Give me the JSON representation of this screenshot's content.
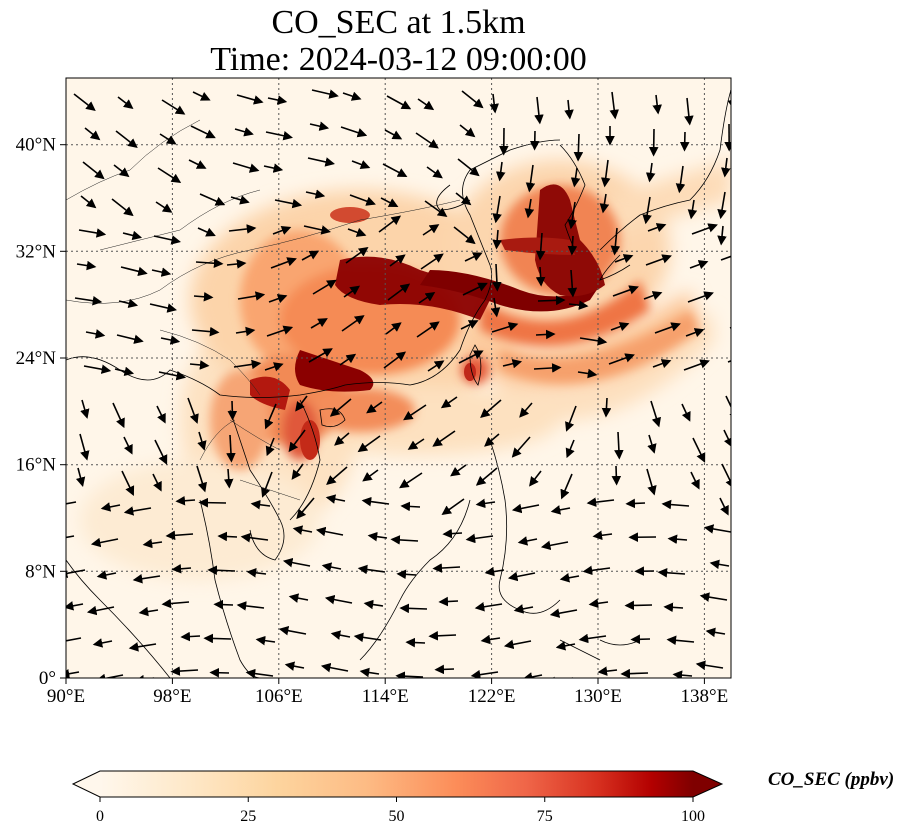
{
  "title": {
    "line1": "CO_SEC at 1.5km",
    "line2": "Time: 2024-03-12 09:00:00"
  },
  "map": {
    "lon_range": [
      90,
      140
    ],
    "lat_range": [
      0,
      45
    ],
    "x_ticks": [
      "90°E",
      "98°E",
      "106°E",
      "114°E",
      "122°E",
      "130°E",
      "138°E"
    ],
    "y_ticks": [
      "0°",
      "8°N",
      "16°N",
      "24°N",
      "32°N",
      "40°N"
    ],
    "gridlines": true,
    "field": "CO_SEC",
    "wind_vectors": true
  },
  "colorbar": {
    "label": "CO_SEC (ppbv)",
    "ticks": [
      "0",
      "25",
      "50",
      "75",
      "100"
    ],
    "range": [
      0,
      100
    ],
    "colormap": "OrRd",
    "extend": "both"
  },
  "colors": {
    "low": "#fff7ec",
    "mid": "#fc8d59",
    "high": "#7f0000"
  }
}
